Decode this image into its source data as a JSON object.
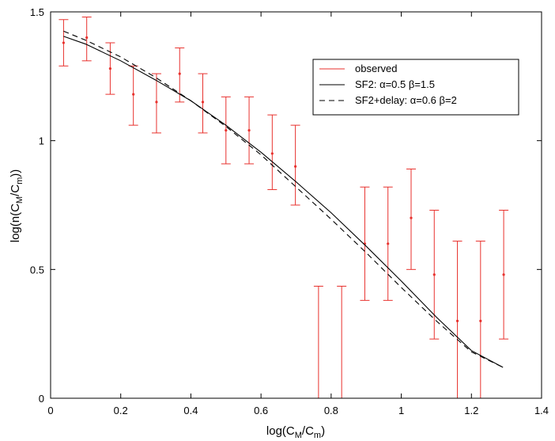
{
  "chart_data": {
    "type": "scatter",
    "xlabel_main": "log(C",
    "xlabel_sub1": "M",
    "xlabel_mid": "/C",
    "xlabel_sub2": "m",
    "xlabel_end": ")",
    "ylabel_main": "log(n(C",
    "ylabel_sub1": "M",
    "ylabel_mid": "/C",
    "ylabel_sub2": "m",
    "ylabel_end": "))",
    "xlim": [
      0,
      1.4
    ],
    "ylim": [
      0,
      1.5
    ],
    "xticks": [
      0,
      0.2,
      0.4,
      0.6,
      0.8,
      1,
      1.2,
      1.4
    ],
    "xtick_labels": [
      "0",
      "0.2",
      "0.4",
      "0.6",
      "0.8",
      "1",
      "1.2",
      "1.4"
    ],
    "yticks": [
      0,
      0.5,
      1,
      1.5
    ],
    "ytick_labels": [
      "0",
      "0.5",
      "1",
      "1.5"
    ],
    "grid": false,
    "legend_placement": "top-right",
    "legend": [
      {
        "label": "observed",
        "color": "#e8322e",
        "style": "solid"
      },
      {
        "label": "SF2: α=0.5 β=1.5",
        "color": "#000000",
        "style": "solid"
      },
      {
        "label": "SF2+delay: α=0.6 β=2",
        "color": "#000000",
        "style": "dashed"
      }
    ],
    "observed_color": "#e8322e",
    "series": [
      {
        "name": "observed",
        "kind": "errorbar",
        "points": [
          {
            "x": 0.037,
            "y": 1.38,
            "lo": 1.29,
            "hi": 1.47
          },
          {
            "x": 0.103,
            "y": 1.4,
            "lo": 1.31,
            "hi": 1.48
          },
          {
            "x": 0.17,
            "y": 1.28,
            "lo": 1.18,
            "hi": 1.38
          },
          {
            "x": 0.236,
            "y": 1.18,
            "lo": 1.06,
            "hi": 1.29
          },
          {
            "x": 0.302,
            "y": 1.15,
            "lo": 1.03,
            "hi": 1.26
          },
          {
            "x": 0.368,
            "y": 1.26,
            "lo": 1.15,
            "hi": 1.36
          },
          {
            "x": 0.434,
            "y": 1.15,
            "lo": 1.03,
            "hi": 1.26
          },
          {
            "x": 0.5,
            "y": 1.04,
            "lo": 0.91,
            "hi": 1.17
          },
          {
            "x": 0.566,
            "y": 1.04,
            "lo": 0.91,
            "hi": 1.17
          },
          {
            "x": 0.632,
            "y": 0.95,
            "lo": 0.81,
            "hi": 1.1
          },
          {
            "x": 0.698,
            "y": 0.9,
            "lo": 0.75,
            "hi": 1.06
          },
          {
            "x": 0.764,
            "y": null,
            "lo": 0.0,
            "hi": 0.435
          },
          {
            "x": 0.83,
            "y": null,
            "lo": 0.0,
            "hi": 0.435
          },
          {
            "x": 0.896,
            "y": 0.6,
            "lo": 0.38,
            "hi": 0.82
          },
          {
            "x": 0.962,
            "y": 0.6,
            "lo": 0.38,
            "hi": 0.82
          },
          {
            "x": 1.028,
            "y": 0.7,
            "lo": 0.5,
            "hi": 0.89
          },
          {
            "x": 1.094,
            "y": 0.48,
            "lo": 0.23,
            "hi": 0.73
          },
          {
            "x": 1.16,
            "y": 0.3,
            "lo": 0.0,
            "hi": 0.61
          },
          {
            "x": 1.226,
            "y": 0.3,
            "lo": 0.0,
            "hi": 0.61
          },
          {
            "x": 1.292,
            "y": 0.48,
            "lo": 0.23,
            "hi": 0.73
          }
        ]
      },
      {
        "name": "SF2: α=0.5 β=1.5",
        "kind": "line",
        "style": "solid",
        "x": [
          0.037,
          0.1,
          0.2,
          0.3,
          0.4,
          0.5,
          0.6,
          0.7,
          0.8,
          0.9,
          1.0,
          1.1,
          1.2,
          1.29
        ],
        "y": [
          1.405,
          1.375,
          1.31,
          1.235,
          1.155,
          1.06,
          0.955,
          0.84,
          0.72,
          0.59,
          0.455,
          0.315,
          0.185,
          0.12
        ]
      },
      {
        "name": "SF2+delay: α=0.6 β=2",
        "kind": "line",
        "style": "dashed",
        "x": [
          0.037,
          0.1,
          0.2,
          0.3,
          0.4,
          0.5,
          0.6,
          0.7,
          0.8,
          0.9,
          1.0,
          1.1,
          1.2,
          1.29
        ],
        "y": [
          1.425,
          1.39,
          1.325,
          1.245,
          1.155,
          1.055,
          0.945,
          0.82,
          0.695,
          0.565,
          0.43,
          0.3,
          0.18,
          0.12
        ]
      }
    ]
  }
}
